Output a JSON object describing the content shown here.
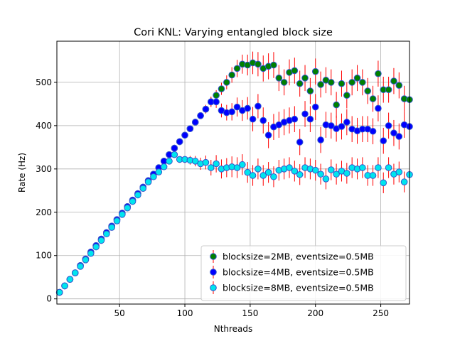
{
  "chart_data": {
    "type": "scatter",
    "title": "Cori KNL: Varying entangled block size",
    "xlabel": "Nthreads",
    "ylabel": "Rate (Hz)",
    "xlim": [
      2,
      272
    ],
    "ylim": [
      -12,
      595
    ],
    "xticks": [
      50,
      100,
      150,
      200,
      250
    ],
    "yticks": [
      0,
      100,
      200,
      300,
      400,
      500
    ],
    "grid": true,
    "legend_position": "bottom-right",
    "error_bar_color": "#ff0000",
    "series": [
      {
        "name": "blocksize=2MB, eventsize=0.5MB",
        "fill": "#008000",
        "edge": "#3355cc",
        "x": [
          4,
          8,
          12,
          16,
          20,
          24,
          28,
          32,
          36,
          40,
          44,
          48,
          52,
          56,
          60,
          64,
          68,
          72,
          76,
          80,
          84,
          88,
          92,
          96,
          100,
          104,
          108,
          112,
          116,
          120,
          124,
          128,
          132,
          136,
          140,
          144,
          148,
          152,
          156,
          160,
          164,
          168,
          172,
          176,
          180,
          184,
          188,
          192,
          196,
          200,
          204,
          208,
          212,
          216,
          220,
          224,
          228,
          232,
          236,
          240,
          244,
          248,
          252,
          256,
          260,
          264,
          268,
          272
        ],
        "y": [
          15,
          30,
          45,
          60,
          77,
          92,
          108,
          123,
          138,
          153,
          168,
          183,
          198,
          213,
          228,
          243,
          258,
          273,
          288,
          303,
          318,
          333,
          348,
          363,
          378,
          393,
          408,
          423,
          438,
          455,
          470,
          485,
          500,
          517,
          532,
          542,
          540,
          545,
          542,
          532,
          537,
          540,
          510,
          500,
          523,
          527,
          497,
          510,
          480,
          525,
          495,
          505,
          500,
          448,
          497,
          470,
          500,
          510,
          500,
          480,
          462,
          520,
          483,
          483,
          503,
          493,
          462,
          460
        ],
        "err": [
          3,
          3,
          3,
          3,
          3,
          3,
          3,
          3,
          3,
          3,
          3,
          3,
          3,
          3,
          3,
          3,
          3,
          3,
          3,
          3,
          3,
          3,
          3,
          4,
          4,
          4,
          5,
          6,
          8,
          10,
          12,
          14,
          16,
          18,
          20,
          22,
          24,
          26,
          28,
          30,
          30,
          30,
          30,
          30,
          30,
          30,
          30,
          30,
          30,
          30,
          30,
          30,
          30,
          30,
          30,
          30,
          30,
          30,
          30,
          30,
          30,
          30,
          30,
          30,
          30,
          30,
          30,
          30
        ]
      },
      {
        "name": "blocksize=4MB, eventsize=0.5MB",
        "fill": "#0000ff",
        "edge": "#3355cc",
        "x": [
          4,
          8,
          12,
          16,
          20,
          24,
          28,
          32,
          36,
          40,
          44,
          48,
          52,
          56,
          60,
          64,
          68,
          72,
          76,
          80,
          84,
          88,
          92,
          96,
          100,
          104,
          108,
          112,
          116,
          120,
          124,
          128,
          132,
          136,
          140,
          144,
          148,
          152,
          156,
          160,
          164,
          168,
          172,
          176,
          180,
          184,
          188,
          192,
          196,
          200,
          204,
          208,
          212,
          216,
          220,
          224,
          228,
          232,
          236,
          240,
          244,
          248,
          252,
          256,
          260,
          264,
          268,
          272
        ],
        "y": [
          15,
          30,
          45,
          60,
          77,
          92,
          108,
          123,
          138,
          153,
          168,
          183,
          198,
          213,
          228,
          243,
          258,
          273,
          288,
          303,
          318,
          333,
          348,
          363,
          378,
          393,
          408,
          423,
          438,
          455,
          455,
          435,
          430,
          432,
          443,
          435,
          440,
          415,
          445,
          412,
          378,
          397,
          402,
          408,
          412,
          415,
          362,
          427,
          415,
          443,
          367,
          402,
          400,
          393,
          398,
          408,
          392,
          388,
          392,
          392,
          387,
          440,
          365,
          400,
          383,
          375,
          402,
          398
        ],
        "err": [
          3,
          3,
          3,
          3,
          3,
          3,
          3,
          3,
          3,
          3,
          3,
          3,
          3,
          3,
          3,
          3,
          3,
          3,
          3,
          3,
          3,
          3,
          3,
          4,
          4,
          5,
          6,
          8,
          10,
          12,
          14,
          16,
          18,
          20,
          22,
          24,
          26,
          28,
          28,
          30,
          30,
          30,
          30,
          30,
          30,
          30,
          30,
          30,
          30,
          30,
          30,
          30,
          30,
          30,
          30,
          30,
          30,
          30,
          30,
          30,
          30,
          30,
          30,
          30,
          30,
          30,
          30,
          30
        ]
      },
      {
        "name": "blocksize=8MB, eventsize=0.5MB",
        "fill": "#00e5ee",
        "edge": "#3355cc",
        "x": [
          4,
          8,
          12,
          16,
          20,
          24,
          28,
          32,
          36,
          40,
          44,
          48,
          52,
          56,
          60,
          64,
          68,
          72,
          76,
          80,
          84,
          88,
          92,
          96,
          100,
          104,
          108,
          112,
          116,
          120,
          124,
          128,
          132,
          136,
          140,
          144,
          148,
          152,
          156,
          160,
          164,
          168,
          172,
          176,
          180,
          184,
          188,
          192,
          196,
          200,
          204,
          208,
          212,
          216,
          220,
          224,
          228,
          232,
          236,
          240,
          244,
          248,
          252,
          256,
          260,
          264,
          268,
          272
        ],
        "y": [
          15,
          30,
          45,
          60,
          75,
          90,
          105,
          120,
          135,
          150,
          165,
          180,
          195,
          210,
          225,
          240,
          255,
          270,
          282,
          293,
          305,
          318,
          333,
          322,
          322,
          320,
          318,
          312,
          315,
          303,
          312,
          300,
          303,
          305,
          303,
          310,
          292,
          285,
          300,
          285,
          292,
          282,
          297,
          300,
          303,
          295,
          287,
          303,
          300,
          297,
          288,
          277,
          298,
          288,
          295,
          290,
          303,
          300,
          303,
          285,
          285,
          303,
          268,
          303,
          288,
          293,
          270,
          287
        ],
        "err": [
          3,
          3,
          3,
          3,
          3,
          3,
          3,
          3,
          3,
          3,
          3,
          3,
          3,
          3,
          3,
          3,
          3,
          3,
          3,
          3,
          3,
          4,
          5,
          6,
          8,
          10,
          12,
          14,
          16,
          18,
          20,
          22,
          22,
          24,
          24,
          24,
          24,
          24,
          24,
          24,
          24,
          24,
          24,
          24,
          24,
          24,
          24,
          24,
          24,
          24,
          24,
          24,
          24,
          24,
          24,
          24,
          24,
          24,
          24,
          24,
          24,
          24,
          24,
          24,
          24,
          24,
          24,
          24
        ]
      }
    ]
  }
}
